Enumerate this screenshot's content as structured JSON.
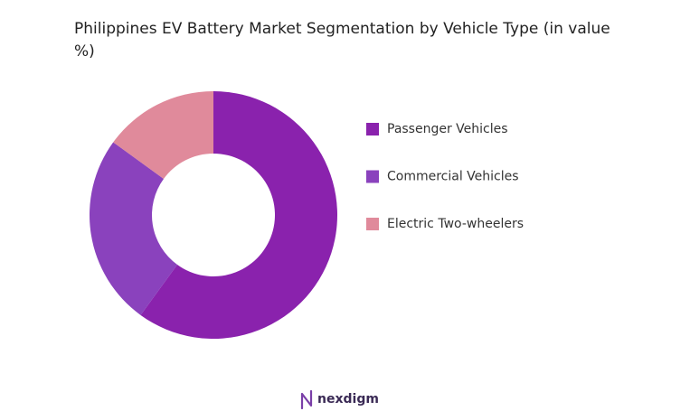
{
  "chart_data": {
    "type": "pie",
    "donut": true,
    "title": "Philippines EV Battery Market Segmentation by Vehicle Type (in value %)",
    "categories": [
      "Passenger Vehicles",
      "Commercial Vehicles",
      "Electric Two-wheelers"
    ],
    "values": [
      60,
      25,
      15
    ],
    "colors": [
      "#8a22ad",
      "#8a42bd",
      "#e08a9b"
    ]
  },
  "footer": {
    "brand": "nexdigm"
  }
}
